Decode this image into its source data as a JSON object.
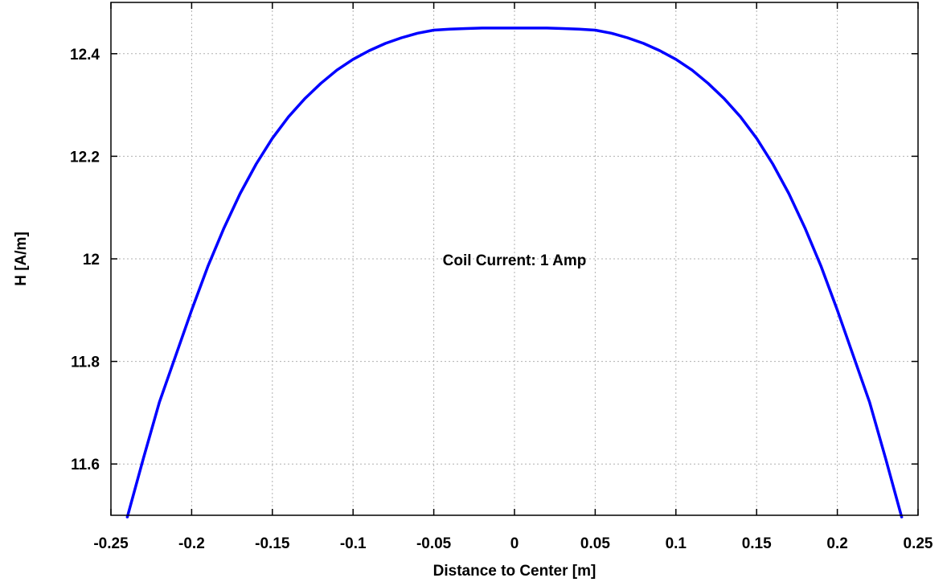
{
  "chart_data": {
    "type": "line",
    "title": "",
    "xlabel": "Distance to Center [m]",
    "ylabel": "H [A/m]",
    "xlim": [
      -0.25,
      0.25
    ],
    "ylim": [
      11.5,
      12.5
    ],
    "x_ticks": [
      -0.25,
      -0.2,
      -0.15,
      -0.1,
      -0.05,
      0,
      0.05,
      0.1,
      0.15,
      0.2,
      0.25
    ],
    "x_tick_labels": [
      "-0.25",
      "-0.2",
      "-0.15",
      "-0.1",
      "-0.05",
      "0",
      "0.05",
      "0.1",
      "0.15",
      "0.2",
      "0.25"
    ],
    "y_ticks": [
      11.6,
      11.8,
      12.0,
      12.2,
      12.4
    ],
    "y_tick_labels": [
      "11.6",
      "11.8",
      "12",
      "12.2",
      "12.4"
    ],
    "grid": true,
    "annotation": {
      "text": "Coil Current: 1 Amp",
      "x": 0,
      "y": 12.0
    },
    "series": [
      {
        "color": "#0000ff",
        "x": [
          -0.24,
          -0.23,
          -0.22,
          -0.21,
          -0.2,
          -0.19,
          -0.18,
          -0.17,
          -0.16,
          -0.15,
          -0.14,
          -0.13,
          -0.12,
          -0.11,
          -0.1,
          -0.09,
          -0.08,
          -0.07,
          -0.06,
          -0.05,
          -0.04,
          -0.03,
          -0.02,
          -0.01,
          0,
          0.01,
          0.02,
          0.03,
          0.04,
          0.05,
          0.06,
          0.07,
          0.08,
          0.09,
          0.1,
          0.11,
          0.12,
          0.13,
          0.14,
          0.15,
          0.16,
          0.17,
          0.18,
          0.19,
          0.2,
          0.21,
          0.22,
          0.23,
          0.24
        ],
        "y": [
          11.495,
          11.61,
          11.72,
          11.81,
          11.9,
          11.985,
          12.06,
          12.127,
          12.185,
          12.235,
          12.277,
          12.312,
          12.342,
          12.368,
          12.389,
          12.406,
          12.42,
          12.431,
          12.44,
          12.446,
          12.448,
          12.449,
          12.45,
          12.45,
          12.45,
          12.45,
          12.45,
          12.449,
          12.448,
          12.446,
          12.44,
          12.431,
          12.42,
          12.406,
          12.389,
          12.368,
          12.342,
          12.312,
          12.277,
          12.235,
          12.185,
          12.127,
          12.06,
          11.985,
          11.9,
          11.81,
          11.72,
          11.61,
          11.495
        ]
      }
    ]
  }
}
